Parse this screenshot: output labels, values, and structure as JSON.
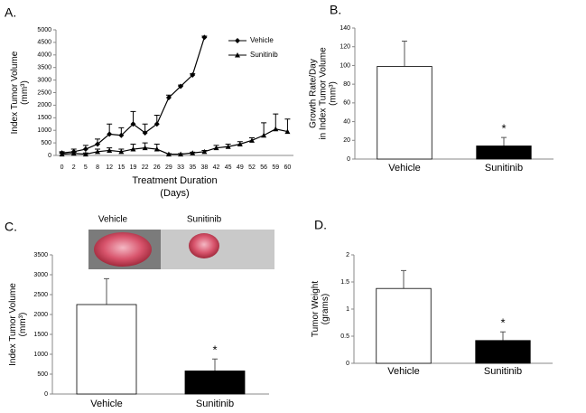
{
  "chart_data": [
    {
      "type": "line",
      "panel_label": "A.",
      "y_label": [
        "Index Tumor  Volume",
        "(mm³)"
      ],
      "x_label": [
        "Treatment Duration",
        "(Days)"
      ],
      "categories": [
        "0",
        "2",
        "5",
        "8",
        "12",
        "15",
        "19",
        "22",
        "26",
        "29",
        "33",
        "35",
        "38",
        "42",
        "45",
        "49",
        "52",
        "56",
        "59",
        "60"
      ],
      "series": [
        {
          "name": "Vehicle",
          "color": "#000000",
          "marker": "diamond",
          "values": [
            100,
            150,
            250,
            450,
            850,
            800,
            1250,
            900,
            1250,
            2300,
            2750,
            3200,
            4700,
            null,
            null,
            null,
            null,
            null,
            null,
            null
          ],
          "errors": [
            50,
            100,
            150,
            200,
            400,
            300,
            500,
            350,
            350,
            100,
            50,
            50,
            50,
            null,
            null,
            null,
            null,
            null,
            null,
            null
          ]
        },
        {
          "name": "Sunitinib",
          "color": "#000000",
          "marker": "triangle",
          "values": [
            50,
            80,
            50,
            150,
            200,
            150,
            250,
            300,
            250,
            50,
            50,
            100,
            150,
            300,
            350,
            450,
            600,
            800,
            1050,
            950
          ],
          "errors": [
            50,
            50,
            50,
            100,
            100,
            100,
            200,
            200,
            200,
            20,
            20,
            30,
            50,
            100,
            100,
            100,
            100,
            500,
            600,
            500
          ]
        }
      ],
      "ylim": [
        0,
        5000
      ],
      "yticks": [
        0,
        500,
        1000,
        1500,
        2000,
        2500,
        3000,
        3500,
        4000,
        4500,
        5000
      ],
      "legend": "upper right",
      "grid": false
    },
    {
      "type": "bar",
      "panel_label": "B.",
      "y_label": [
        "Growth Rate/Day",
        "in Index Tumor  Volume",
        "(mm³)"
      ],
      "categories": [
        "Vehicle",
        "Sunitinib"
      ],
      "values": [
        99,
        14
      ],
      "errors": [
        27,
        9
      ],
      "colors": [
        "#ffffff",
        "#000000"
      ],
      "markers": [
        null,
        "*"
      ],
      "ylim": [
        0,
        140
      ],
      "yticks": [
        0,
        20,
        40,
        60,
        80,
        100,
        120,
        140
      ],
      "grid": false
    },
    {
      "type": "bar",
      "panel_label": "C.",
      "y_label": [
        "Index Tumor  Volume",
        "(mm³)"
      ],
      "photo_labels": [
        "Vehicle",
        "Sunitinib"
      ],
      "categories": [
        "Vehicle",
        "Sunitinib"
      ],
      "values": [
        2250,
        580
      ],
      "errors": [
        650,
        300
      ],
      "colors": [
        "#ffffff",
        "#000000"
      ],
      "markers": [
        null,
        "*"
      ],
      "ylim": [
        0,
        3500
      ],
      "yticks": [
        0,
        500,
        1000,
        1500,
        2000,
        2500,
        3000,
        3500
      ],
      "grid": false
    },
    {
      "type": "bar",
      "panel_label": "D.",
      "y_label": [
        "Tumor  Weight",
        "(grams)"
      ],
      "categories": [
        "Vehicle",
        "Sunitinib"
      ],
      "values": [
        1.38,
        0.42
      ],
      "errors": [
        0.33,
        0.16
      ],
      "colors": [
        "#ffffff",
        "#000000"
      ],
      "markers": [
        null,
        "*"
      ],
      "ylim": [
        0,
        2
      ],
      "yticks": [
        0,
        0.5,
        1,
        1.5,
        2
      ],
      "grid": false
    }
  ]
}
